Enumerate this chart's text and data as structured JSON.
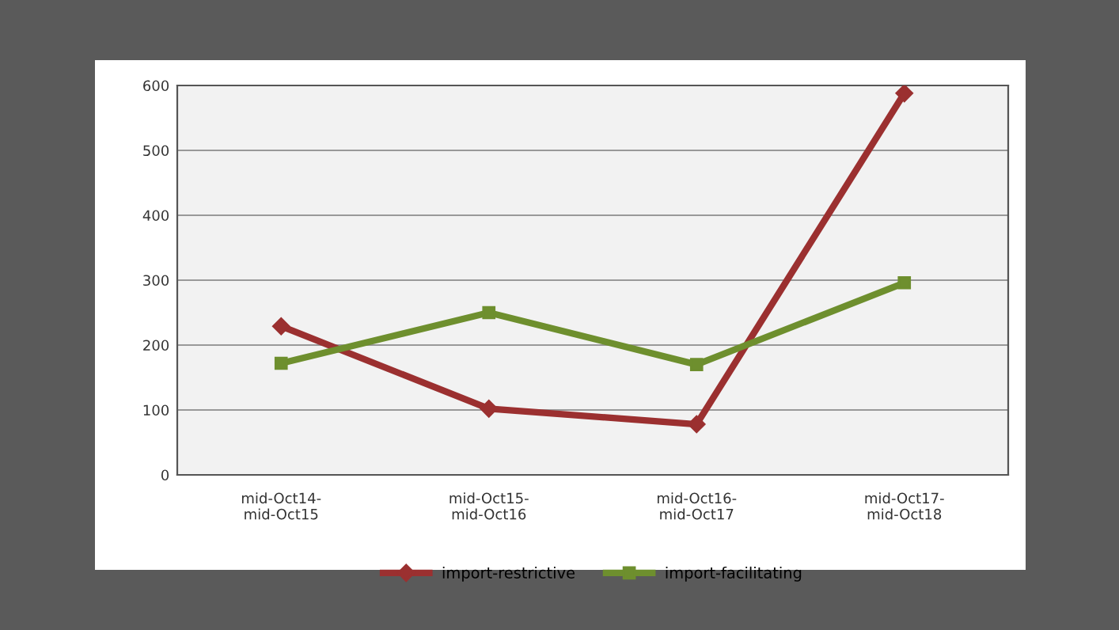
{
  "chart_data": {
    "type": "line",
    "categories": [
      "mid-Oct14-\nmid-Oct15",
      "mid-Oct15-\nmid-Oct16",
      "mid-Oct16-\nmid-Oct17",
      "mid-Oct17-\nmid-Oct18"
    ],
    "series": [
      {
        "name": "import-restrictive",
        "color": "#9b3030",
        "marker": "diamond",
        "values": [
          229,
          102,
          78,
          588
        ]
      },
      {
        "name": "import-facilitating",
        "color": "#6e8f2e",
        "marker": "square",
        "values": [
          172,
          250,
          170,
          296
        ]
      }
    ],
    "ylim": [
      0,
      600
    ],
    "yticks": [
      0,
      100,
      200,
      300,
      400,
      500,
      600
    ],
    "grid": "y",
    "legend": "bottom",
    "line_style": "solid"
  }
}
